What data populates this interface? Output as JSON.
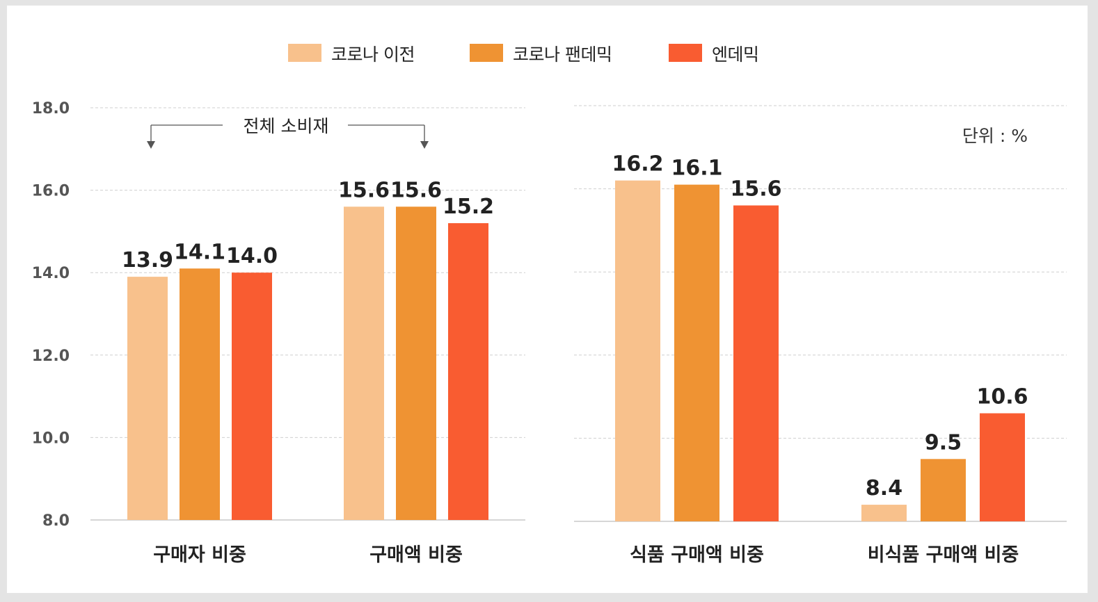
{
  "legend": {
    "items": [
      {
        "label": "코로나 이전",
        "color": "#f8c18c"
      },
      {
        "label": "코로나 팬데믹",
        "color": "#ef9333"
      },
      {
        "label": "엔데믹",
        "color": "#f95c31"
      }
    ]
  },
  "annotations": {
    "bracket_label": "전체 소비재",
    "unit_label": "단위 : %"
  },
  "chart_data": [
    {
      "type": "bar",
      "categories": [
        "구매자 비중",
        "구매액 비중"
      ],
      "series": [
        {
          "name": "코로나 이전",
          "values": [
            13.9,
            15.6
          ]
        },
        {
          "name": "코로나 팬데믹",
          "values": [
            14.1,
            15.6
          ]
        },
        {
          "name": "엔데믹",
          "values": [
            14.0,
            15.2
          ]
        }
      ],
      "data_labels": [
        [
          "13.9",
          "15.6"
        ],
        [
          "14.1",
          "15.6"
        ],
        [
          "14.0",
          "15.2"
        ]
      ],
      "ylim": [
        8,
        18
      ],
      "yticks": [
        "8.0",
        "10.0",
        "12.0",
        "14.0",
        "16.0",
        "18.0"
      ],
      "grid": true,
      "legend": "top-center"
    },
    {
      "type": "bar",
      "categories": [
        "식품 구매액 비중",
        "비식품 구매액 비중"
      ],
      "series": [
        {
          "name": "코로나 이전",
          "values": [
            16.2,
            8.4
          ]
        },
        {
          "name": "코로나 팬데믹",
          "values": [
            16.1,
            9.5
          ]
        },
        {
          "name": "엔데믹",
          "values": [
            15.6,
            10.6
          ]
        }
      ],
      "data_labels": [
        [
          "16.2",
          "8.4"
        ],
        [
          "16.1",
          "9.5"
        ],
        [
          "15.6",
          "10.6"
        ]
      ],
      "ylim": [
        8,
        18
      ],
      "grid": true,
      "legend": "top-center"
    }
  ]
}
